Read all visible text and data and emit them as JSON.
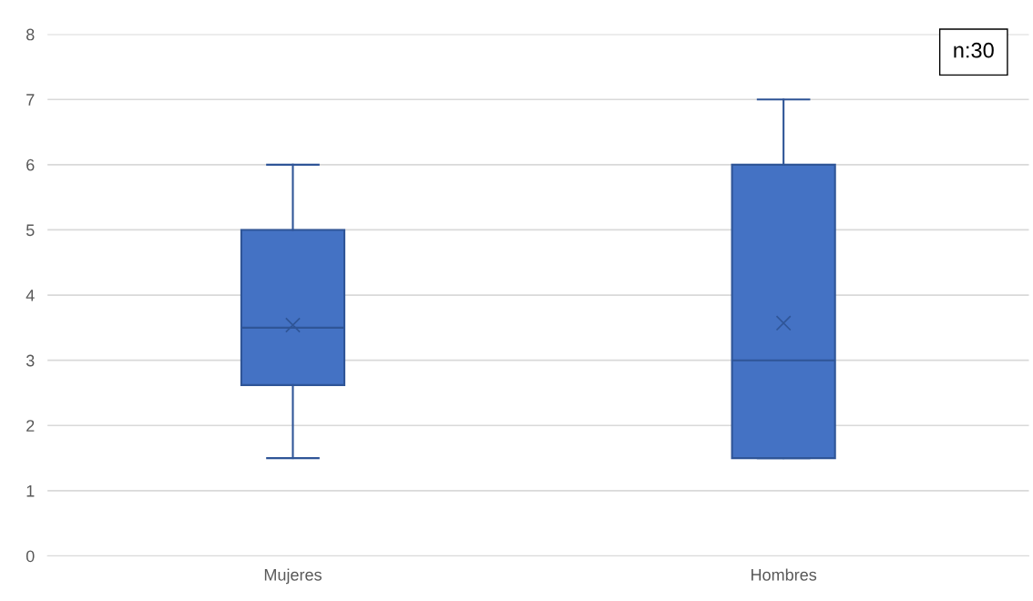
{
  "chart_data": {
    "type": "box",
    "categories": [
      "Mujeres",
      "Hombres"
    ],
    "boxes": [
      {
        "low": 1.5,
        "q1": 2.62,
        "median": 3.5,
        "q3": 5,
        "high": 6,
        "mean": 3.54
      },
      {
        "low": 1.5,
        "q1": 1.5,
        "median": 3,
        "q3": 6,
        "high": 7,
        "mean": 3.57
      }
    ],
    "color": "#4472c4",
    "ylim": [
      0,
      8
    ],
    "yticks": [
      0,
      1,
      2,
      3,
      4,
      5,
      6,
      7,
      8
    ],
    "grid": "y",
    "annotations": [
      "n:30"
    ]
  }
}
